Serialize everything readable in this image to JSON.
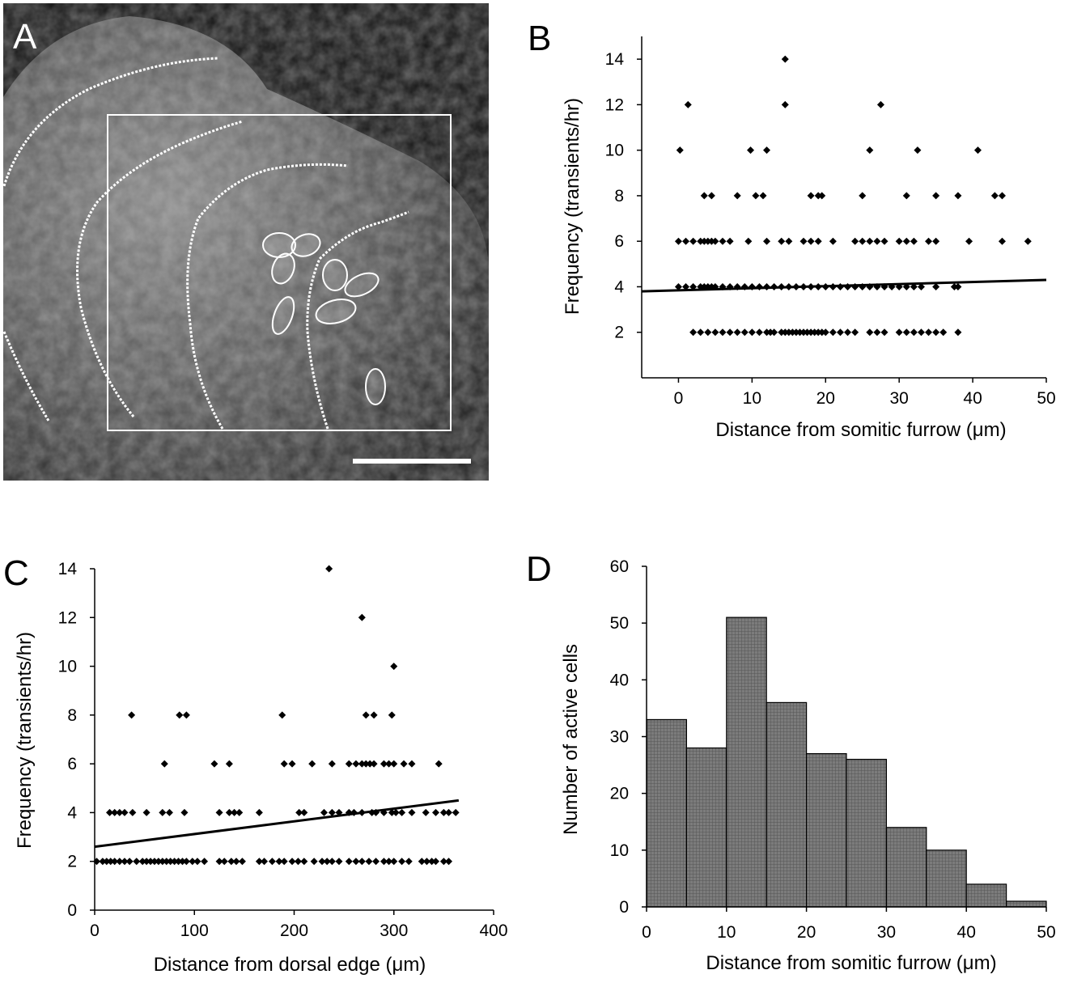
{
  "panels": {
    "A": {
      "label": "A"
    },
    "B": {
      "label": "B"
    },
    "C": {
      "label": "C"
    },
    "D": {
      "label": "D"
    }
  },
  "chart_data": [
    {
      "panel": "B",
      "type": "scatter",
      "xlabel": "Distance from somitic furrow (μm)",
      "ylabel": "Frequency (transients/hr)",
      "xlim": [
        -5,
        50
      ],
      "ylim": [
        0,
        15
      ],
      "xticks": [
        "0",
        "10",
        "20",
        "30",
        "40",
        "50"
      ],
      "yticks": [
        "2",
        "4",
        "6",
        "8",
        "10",
        "12",
        "14"
      ],
      "trendline": {
        "x": [
          -5,
          50
        ],
        "y": [
          3.8,
          4.3
        ]
      },
      "points": {
        "14": [
          14.5
        ],
        "12": [
          1.3,
          14.5,
          27.5
        ],
        "10": [
          0.2,
          9.8,
          12,
          26,
          32.5,
          40.7
        ],
        "8": [
          3.5,
          4.5,
          8,
          10.5,
          11.5,
          18,
          19,
          19.5,
          25,
          31,
          35,
          38,
          43,
          44
        ],
        "6": [
          0,
          1,
          2,
          3,
          3.5,
          4,
          4.5,
          5,
          6,
          7,
          9.5,
          12,
          14,
          15,
          17,
          18,
          19,
          21,
          24,
          25,
          26,
          27,
          28,
          30,
          31,
          32,
          34,
          35,
          39.5,
          44,
          47.5
        ],
        "4": [
          0,
          1,
          2,
          3,
          3.5,
          4,
          4.5,
          5,
          6,
          7,
          8,
          9,
          10,
          11,
          12,
          13,
          14,
          15,
          16,
          17,
          18,
          19,
          20,
          21,
          22,
          23,
          24,
          25,
          26,
          27,
          28,
          29,
          30,
          31,
          32,
          33,
          35,
          37.5,
          38
        ],
        "2": [
          2,
          3,
          4,
          5,
          6,
          7,
          8,
          9,
          10,
          11,
          12,
          12.5,
          13,
          14,
          14.5,
          15,
          15.5,
          16,
          16.5,
          17,
          17.5,
          18,
          18.5,
          19,
          19.5,
          20,
          21,
          22,
          23,
          24,
          26,
          27,
          28,
          30,
          31,
          32,
          33,
          34,
          35,
          36,
          38
        ]
      }
    },
    {
      "panel": "C",
      "type": "scatter",
      "xlabel": "Distance from dorsal edge (μm)",
      "ylabel": "Frequency (transients/hr)",
      "xlim": [
        0,
        400
      ],
      "ylim": [
        0,
        14
      ],
      "xticks": [
        "0",
        "100",
        "200",
        "300",
        "400"
      ],
      "yticks": [
        "0",
        "2",
        "4",
        "6",
        "8",
        "10",
        "12",
        "14"
      ],
      "trendline": {
        "x": [
          0,
          365
        ],
        "y": [
          2.6,
          4.5
        ]
      },
      "points": {
        "14": [
          235
        ],
        "12": [
          268
        ],
        "10": [
          300
        ],
        "8": [
          37,
          85,
          92,
          188,
          272,
          280,
          298
        ],
        "6": [
          70,
          120,
          135,
          190,
          198,
          218,
          238,
          255,
          262,
          268,
          272,
          276,
          280,
          290,
          295,
          300,
          310,
          318,
          345
        ],
        "4": [
          15,
          20,
          25,
          30,
          38,
          52,
          68,
          75,
          90,
          125,
          135,
          140,
          145,
          165,
          205,
          210,
          230,
          238,
          245,
          255,
          260,
          268,
          278,
          282,
          290,
          298,
          302,
          308,
          318,
          332,
          342,
          350,
          355,
          362
        ],
        "2": [
          2,
          8,
          12,
          16,
          20,
          25,
          30,
          35,
          42,
          48,
          52,
          56,
          60,
          64,
          68,
          72,
          76,
          80,
          84,
          88,
          92,
          98,
          103,
          110,
          125,
          130,
          137,
          142,
          148,
          165,
          170,
          178,
          185,
          190,
          198,
          204,
          210,
          220,
          228,
          233,
          238,
          245,
          255,
          262,
          268,
          275,
          282,
          290,
          295,
          300,
          308,
          315,
          328,
          333,
          338,
          342,
          350,
          355
        ]
      }
    },
    {
      "panel": "D",
      "type": "bar",
      "xlabel": "Distance from somitic furrow (μm)",
      "ylabel": "Number of active cells",
      "xlim": [
        0,
        50
      ],
      "ylim": [
        0,
        60
      ],
      "xticks": [
        "0",
        "10",
        "20",
        "30",
        "40",
        "50"
      ],
      "yticks": [
        "0",
        "10",
        "20",
        "30",
        "40",
        "50",
        "60"
      ],
      "bin_edges": [
        0,
        5,
        10,
        15,
        20,
        25,
        30,
        35,
        40,
        45,
        50
      ],
      "values": [
        33,
        28,
        51,
        36,
        27,
        26,
        14,
        10,
        4,
        1
      ]
    }
  ]
}
